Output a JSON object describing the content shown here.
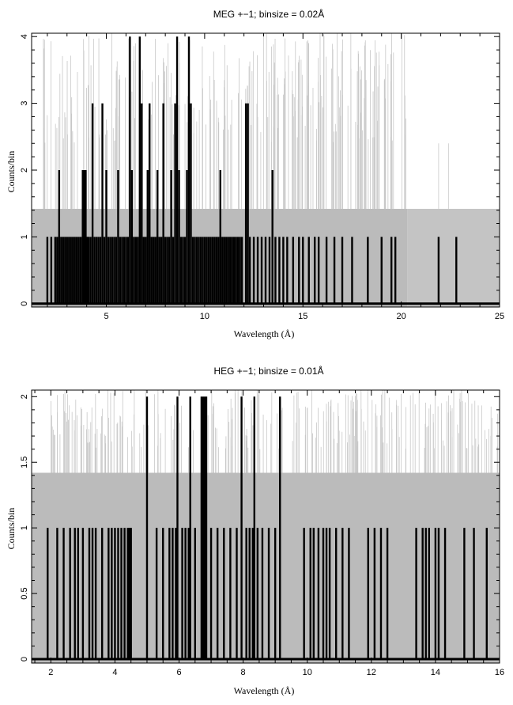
{
  "chart_data": [
    {
      "type": "bar",
      "title": "MEG +−1; binsize = 0.02Å",
      "xlabel": "Wavelength (Å)",
      "ylabel": "Counts/bin",
      "xlim": [
        1.2,
        25
      ],
      "ylim": [
        -0.05,
        4.05
      ],
      "xticks": [
        5,
        10,
        15,
        20,
        25
      ],
      "xtick_labels": [
        "5",
        "10",
        "15",
        "20",
        "25"
      ],
      "yticks": [
        0,
        1,
        2,
        3,
        4
      ],
      "ytick_labels": [
        "0",
        "1",
        "2",
        "3",
        "4"
      ],
      "background_level": 1.42,
      "background_extent": [
        1.2,
        20.3
      ],
      "background_lighter_extent": [
        20.3,
        25
      ],
      "series": [
        {
          "x": [
            2.0,
            2.2,
            2.4,
            2.5,
            2.6,
            2.7,
            2.8,
            2.9,
            3.0,
            3.1,
            3.2,
            3.3,
            3.4,
            3.5,
            3.6,
            3.7,
            3.8,
            3.85,
            3.9,
            3.95,
            4.0,
            4.05,
            4.1,
            4.2,
            4.3,
            4.4,
            4.5,
            4.6,
            4.7,
            4.8,
            4.9,
            5.0,
            5.1,
            5.2,
            5.3,
            5.4,
            5.5,
            5.6,
            5.7,
            5.8,
            5.9,
            6.0,
            6.1,
            6.2,
            6.3,
            6.4,
            6.5,
            6.6,
            6.7,
            6.8,
            6.9,
            7.0,
            7.1,
            7.2,
            7.3,
            7.4,
            7.5,
            7.6,
            7.7,
            7.8,
            7.9,
            8.0,
            8.1,
            8.2,
            8.3,
            8.4,
            8.5,
            8.6,
            8.7,
            8.8,
            8.9,
            9.0,
            9.1,
            9.2,
            9.3,
            9.4,
            9.5,
            9.6,
            9.7,
            9.8,
            9.9,
            10.0,
            10.1,
            10.2,
            10.3,
            10.4,
            10.5,
            10.6,
            10.7,
            10.8,
            10.9,
            11.0,
            11.1,
            11.2,
            11.3,
            11.4,
            11.5,
            11.6,
            11.7,
            11.8,
            11.9,
            12.1,
            12.2,
            12.3,
            12.5,
            12.7,
            12.9,
            13.1,
            13.3,
            13.45,
            13.6,
            13.8,
            14.0,
            14.2,
            14.5,
            14.8,
            15.0,
            15.3,
            15.6,
            15.8,
            16.2,
            16.6,
            17.0,
            17.5,
            18.3,
            19.0,
            19.5,
            19.7,
            21.9,
            22.8
          ],
          "values": [
            1,
            1,
            1,
            1,
            2,
            1,
            1,
            1,
            1,
            1,
            1,
            1,
            1,
            1,
            1,
            1,
            2,
            2,
            2,
            2,
            1,
            1,
            1,
            1,
            3,
            1,
            1,
            1,
            1,
            3,
            1,
            2,
            1,
            1,
            1,
            1,
            1,
            2,
            1,
            1,
            1,
            1,
            1,
            4,
            2,
            1,
            1,
            1,
            4,
            3,
            1,
            1,
            2,
            3,
            1,
            1,
            1,
            2,
            1,
            1,
            3,
            1,
            1,
            1,
            2,
            1,
            3,
            4,
            2,
            1,
            1,
            1,
            2,
            4,
            3,
            1,
            1,
            1,
            1,
            1,
            1,
            1,
            1,
            1,
            1,
            1,
            1,
            1,
            1,
            2,
            1,
            1,
            1,
            1,
            1,
            1,
            1,
            1,
            1,
            1,
            1,
            3,
            3,
            1,
            1,
            1,
            1,
            1,
            1,
            2,
            1,
            1,
            1,
            1,
            1,
            1,
            1,
            1,
            1,
            1,
            1,
            1,
            1,
            1,
            1,
            1,
            1,
            1,
            1,
            1
          ]
        }
      ],
      "grid": false,
      "legend": "none",
      "colors": {
        "data": "#000000",
        "background": "#bbbbbb",
        "background_light": "#c4c4c4",
        "model": "#c8c8c8"
      }
    },
    {
      "type": "bar",
      "title": "HEG +−1; binsize = 0.01Å",
      "xlabel": "Wavelength (Å)",
      "ylabel": "Counts/bin",
      "xlim": [
        1.4,
        16
      ],
      "ylim": [
        -0.03,
        2.05
      ],
      "xticks": [
        2,
        4,
        6,
        8,
        10,
        12,
        14,
        16
      ],
      "xtick_labels": [
        "2",
        "4",
        "6",
        "8",
        "10",
        "12",
        "14",
        "16"
      ],
      "yticks": [
        0,
        0.5,
        1,
        1.5,
        2
      ],
      "ytick_labels": [
        "0",
        "0.5",
        "1",
        "1.5",
        "2"
      ],
      "background_level": 1.42,
      "background_extent": [
        1.4,
        16
      ],
      "series": [
        {
          "x": [
            1.9,
            2.2,
            2.4,
            2.6,
            2.75,
            2.85,
            3.0,
            3.2,
            3.3,
            3.4,
            3.6,
            3.8,
            3.9,
            4.0,
            4.1,
            4.2,
            4.3,
            4.4,
            4.45,
            4.5,
            5.0,
            5.3,
            5.5,
            5.7,
            5.8,
            5.9,
            5.95,
            6.1,
            6.2,
            6.3,
            6.35,
            6.5,
            6.7,
            6.75,
            6.8,
            6.85,
            7.0,
            7.2,
            7.4,
            7.6,
            7.8,
            7.95,
            8.1,
            8.2,
            8.3,
            8.35,
            8.45,
            8.6,
            8.8,
            9.0,
            9.15,
            9.9,
            10.1,
            10.2,
            10.35,
            10.5,
            10.6,
            10.7,
            10.9,
            11.1,
            11.3,
            11.9,
            12.1,
            12.3,
            12.5,
            13.4,
            13.6,
            13.7,
            13.8,
            14.0,
            14.1,
            14.3,
            14.9,
            15.2,
            15.6
          ],
          "values": [
            1,
            1,
            1,
            1,
            1,
            1,
            1,
            1,
            1,
            1,
            1,
            1,
            1,
            1,
            1,
            1,
            1,
            1,
            1,
            1,
            2,
            1,
            1,
            1,
            1,
            1,
            2,
            1,
            1,
            1,
            2,
            1,
            2,
            2,
            2,
            2,
            1,
            1,
            1,
            1,
            1,
            2,
            1,
            1,
            1,
            2,
            1,
            1,
            1,
            1,
            2,
            1,
            1,
            1,
            1,
            1,
            1,
            1,
            1,
            1,
            1,
            1,
            1,
            1,
            1,
            1,
            1,
            1,
            1,
            1,
            1,
            1,
            1,
            1,
            1
          ]
        }
      ],
      "grid": false,
      "legend": "none",
      "colors": {
        "data": "#000000",
        "background": "#bbbbbb",
        "model": "#c8c8c8"
      }
    }
  ]
}
